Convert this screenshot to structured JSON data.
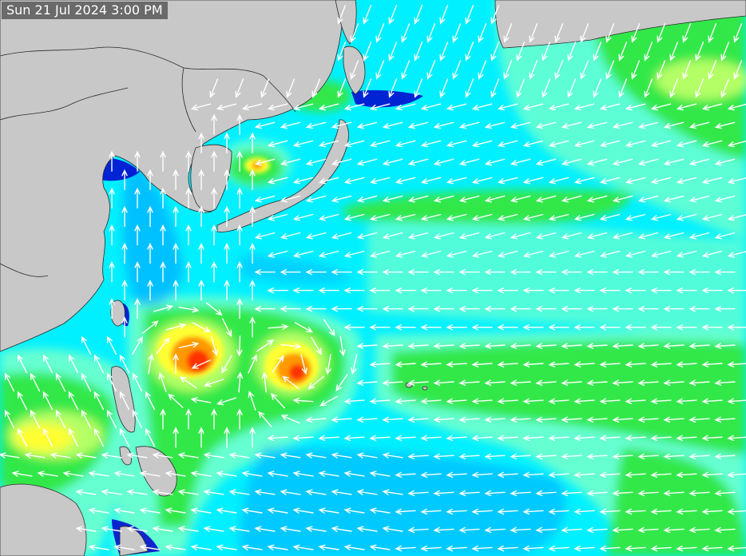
{
  "map": {
    "timestamp": "Sun 21 Jul 2024 3:00 PM",
    "colors": {
      "land": "#c8c8c8",
      "border": "#2b2b2b",
      "ocean_base": "#00f0ff",
      "level_navy": "#0000cc",
      "level_blue": "#0099ff",
      "level_cyan": "#00ffff",
      "level_aqua": "#66ffd2",
      "level_green": "#33e84a",
      "level_lime": "#b4ff66",
      "level_yellow": "#ffff33",
      "level_orange": "#ff9900",
      "level_red": "#ff3300",
      "arrow": "#ffffff"
    }
  }
}
